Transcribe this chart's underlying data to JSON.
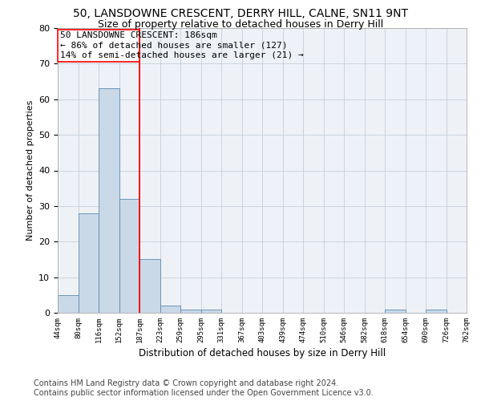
{
  "title1": "50, LANSDOWNE CRESCENT, DERRY HILL, CALNE, SN11 9NT",
  "title2": "Size of property relative to detached houses in Derry Hill",
  "xlabel": "Distribution of detached houses by size in Derry Hill",
  "ylabel": "Number of detached properties",
  "bar_color": "#c9d9e8",
  "bar_edge_color": "#5a8ab0",
  "bar_heights": [
    5,
    28,
    63,
    32,
    15,
    2,
    1,
    1,
    0,
    0,
    0,
    0,
    0,
    0,
    0,
    0,
    1,
    0,
    1,
    0
  ],
  "x_labels": [
    "44sqm",
    "80sqm",
    "116sqm",
    "152sqm",
    "187sqm",
    "223sqm",
    "259sqm",
    "295sqm",
    "331sqm",
    "367sqm",
    "403sqm",
    "439sqm",
    "474sqm",
    "510sqm",
    "546sqm",
    "582sqm",
    "618sqm",
    "654sqm",
    "690sqm",
    "726sqm",
    "762sqm"
  ],
  "n_bars": 20,
  "ylim": [
    0,
    80
  ],
  "yticks": [
    0,
    10,
    20,
    30,
    40,
    50,
    60,
    70,
    80
  ],
  "annotation_text_line1": "50 LANSDOWNE CRESCENT: 186sqm",
  "annotation_text_line2": "← 86% of detached houses are smaller (127)",
  "annotation_text_line3": "14% of semi-detached houses are larger (21) →",
  "red_line_x": 4,
  "footer_line1": "Contains HM Land Registry data © Crown copyright and database right 2024.",
  "footer_line2": "Contains public sector information licensed under the Open Government Licence v3.0.",
  "background_color": "#eef2f7",
  "grid_color": "#c5cdd8",
  "title_fontsize": 10,
  "subtitle_fontsize": 9,
  "annotation_fontsize": 8,
  "footer_fontsize": 7,
  "ylabel_fontsize": 8,
  "xlabel_fontsize": 8.5
}
